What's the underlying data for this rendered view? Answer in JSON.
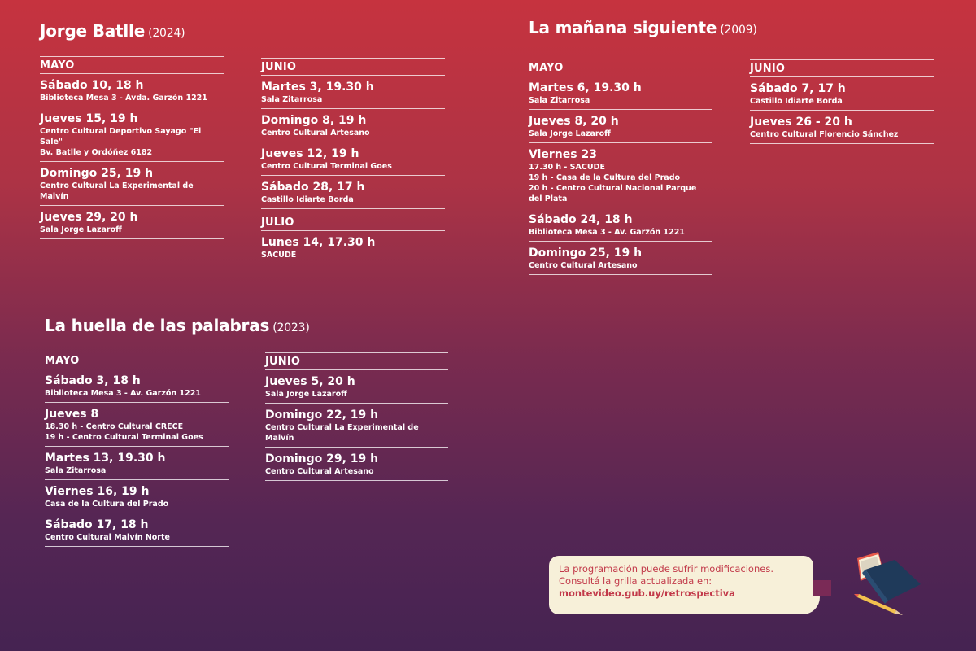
{
  "films": [
    {
      "title": "Jorge Batlle",
      "year": "(2024)",
      "columns": [
        {
          "months": [
            {
              "name": "MAYO",
              "entries": [
                {
                  "date": "Sábado 10, 18 h",
                  "lines": [
                    "Biblioteca Mesa 3 - Avda. Garzón 1221"
                  ]
                },
                {
                  "date": "Jueves 15, 19 h",
                  "lines": [
                    "Centro Cultural Deportivo Sayago \"El Sale\"",
                    "Bv. Batlle y Ordóñez 6182"
                  ]
                },
                {
                  "date": "Domingo 25, 19 h",
                  "lines": [
                    "Centro Cultural La Experimental de Malvín"
                  ]
                },
                {
                  "date": "Jueves 29, 20 h",
                  "lines": [
                    "Sala Jorge Lazaroff"
                  ]
                }
              ]
            }
          ]
        },
        {
          "months": [
            {
              "name": "JUNIO",
              "entries": [
                {
                  "date": "Martes 3, 19.30 h",
                  "lines": [
                    "Sala Zitarrosa"
                  ]
                },
                {
                  "date": "Domingo 8, 19 h",
                  "lines": [
                    "Centro Cultural Artesano"
                  ]
                },
                {
                  "date": "Jueves 12, 19 h",
                  "lines": [
                    "Centro Cultural Terminal Goes"
                  ]
                },
                {
                  "date": "Sábado 28, 17 h",
                  "lines": [
                    "Castillo Idiarte Borda"
                  ]
                }
              ]
            },
            {
              "name": "JULIO",
              "entries": [
                {
                  "date": "Lunes 14, 17.30 h",
                  "lines": [
                    "SACUDE"
                  ]
                }
              ]
            }
          ]
        }
      ]
    },
    {
      "title": "La mañana siguiente",
      "year": "(2009)",
      "columns": [
        {
          "months": [
            {
              "name": "MAYO",
              "entries": [
                {
                  "date": "Martes 6, 19.30 h",
                  "lines": [
                    "Sala Zitarrosa"
                  ]
                },
                {
                  "date": "Jueves 8, 20 h",
                  "lines": [
                    "Sala Jorge Lazaroff"
                  ]
                },
                {
                  "date": "Viernes 23",
                  "lines": [
                    "17.30 h - SACUDE",
                    "19 h - Casa de la Cultura del Prado",
                    "20 h - Centro Cultural Nacional Parque del Plata"
                  ]
                },
                {
                  "date": "Sábado 24, 18 h",
                  "lines": [
                    "Biblioteca Mesa 3 - Av. Garzón 1221"
                  ]
                },
                {
                  "date": "Domingo 25, 19 h",
                  "lines": [
                    "Centro Cultural Artesano"
                  ]
                }
              ]
            }
          ]
        },
        {
          "months": [
            {
              "name": "JUNIO",
              "entries": [
                {
                  "date": "Sábado 7, 17 h",
                  "lines": [
                    "Castillo Idiarte Borda"
                  ]
                },
                {
                  "date": "Jueves 26 - 20 h",
                  "lines": [
                    "Centro Cultural Florencio Sánchez"
                  ]
                }
              ]
            }
          ]
        }
      ]
    },
    {
      "title": "La huella de las palabras",
      "year": "(2023)",
      "columns": [
        {
          "months": [
            {
              "name": "MAYO",
              "entries": [
                {
                  "date": "Sábado 3, 18 h",
                  "lines": [
                    "Biblioteca Mesa 3 - Av. Garzón 1221"
                  ]
                },
                {
                  "date": "Jueves 8",
                  "lines": [
                    "18.30 h - Centro Cultural CRECE",
                    "19 h - Centro Cultural Terminal Goes"
                  ]
                },
                {
                  "date": "Martes 13, 19.30 h",
                  "lines": [
                    "Sala Zitarrosa"
                  ]
                },
                {
                  "date": "Viernes 16, 19 h",
                  "lines": [
                    "Casa de la Cultura del Prado"
                  ]
                },
                {
                  "date": "Sábado 17, 18 h",
                  "lines": [
                    "Centro Cultural Malvín Norte"
                  ]
                }
              ]
            }
          ]
        },
        {
          "months": [
            {
              "name": "JUNIO",
              "entries": [
                {
                  "date": "Jueves 5, 20 h",
                  "lines": [
                    "Sala Jorge Lazaroff"
                  ]
                },
                {
                  "date": "Domingo 22, 19 h",
                  "lines": [
                    "Centro Cultural La Experimental de Malvín"
                  ]
                },
                {
                  "date": "Domingo 29, 19 h",
                  "lines": [
                    "Centro Cultural Artesano"
                  ]
                }
              ]
            }
          ]
        }
      ]
    }
  ],
  "note": {
    "line1": "La programación puede sufrir modificaciones.",
    "line2": "Consultá la grilla actualizada en:",
    "link": "montevideo.gub.uy/retrospectiva"
  },
  "colors": {
    "background_top": "#c6333f",
    "background_bottom": "#452352",
    "note_background": "#f7f0d9",
    "note_text": "#c23a4a",
    "book_cover": "#1f3a5a",
    "book_pages": "#e85a4a"
  },
  "icons": [
    "open-book-icon",
    "pencil-icon"
  ]
}
